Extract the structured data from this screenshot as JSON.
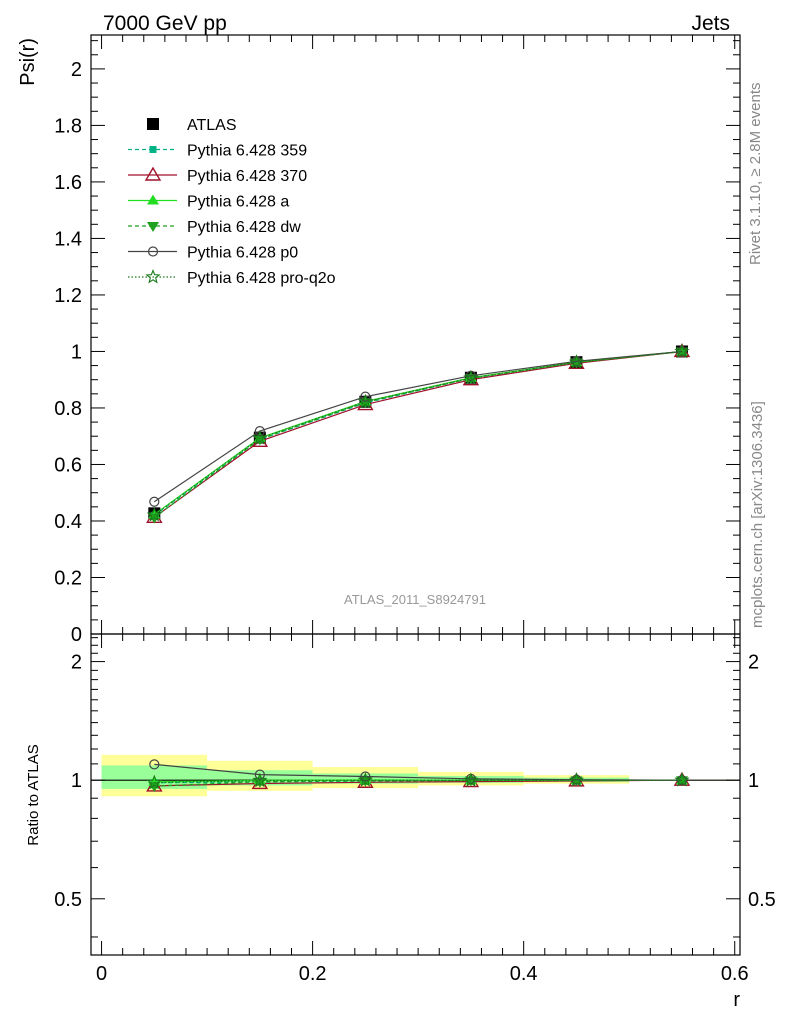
{
  "header": {
    "left": "7000 GeV pp",
    "right": "Jets"
  },
  "side_text": {
    "rivet": "Rivet 3.1.10, ≥ 2.8M events",
    "mcplots": "mcplots.cern.ch [arXiv:1306.3436]"
  },
  "watermark": "ATLAS_2011_S8924791",
  "colors": {
    "atlas": "#000000",
    "p359": "#00b386",
    "p370": "#a0102a",
    "pa": "#22dd22",
    "pdw": "#1fa01f",
    "pp0": "#444444",
    "pq2o": "#1a7a1a",
    "band_outer": "#ffff99",
    "band_inner": "#99ff99"
  },
  "chart_data": [
    {
      "type": "line",
      "ylabel": "Psi(r)",
      "xlabel": "r",
      "xlim": [
        -0.01,
        0.605
      ],
      "ylim": [
        0,
        2.12
      ],
      "yticks": [
        {
          "v": 0,
          "label": "0"
        },
        {
          "v": 0.2,
          "label": "0.2"
        },
        {
          "v": 0.4,
          "label": "0.4"
        },
        {
          "v": 0.6,
          "label": "0.6"
        },
        {
          "v": 0.8,
          "label": "0.8"
        },
        {
          "v": 1.0,
          "label": "1"
        },
        {
          "v": 1.2,
          "label": "1.2"
        },
        {
          "v": 1.4,
          "label": "1.4"
        },
        {
          "v": 1.6,
          "label": "1.6"
        },
        {
          "v": 1.8,
          "label": "1.8"
        },
        {
          "v": 2.0,
          "label": "2"
        }
      ],
      "legend_position": "top-left",
      "x": [
        0.05,
        0.15,
        0.25,
        0.35,
        0.45,
        0.55
      ],
      "series": [
        {
          "name": "ATLAS",
          "key": "atlas",
          "values": [
            0.427,
            0.695,
            0.822,
            0.907,
            0.962,
            1.0
          ]
        },
        {
          "name": "Pythia 6.428 359",
          "key": "p359",
          "values": [
            0.42,
            0.688,
            0.818,
            0.905,
            0.961,
            1.0
          ]
        },
        {
          "name": "Pythia 6.428 370",
          "key": "p370",
          "values": [
            0.413,
            0.682,
            0.812,
            0.9,
            0.958,
            1.0
          ]
        },
        {
          "name": "Pythia 6.428 a",
          "key": "pa",
          "values": [
            0.423,
            0.694,
            0.823,
            0.907,
            0.962,
            1.0
          ]
        },
        {
          "name": "Pythia 6.428 dw",
          "key": "pdw",
          "values": [
            0.412,
            0.689,
            0.82,
            0.905,
            0.961,
            1.0
          ]
        },
        {
          "name": "Pythia 6.428 p0",
          "key": "pp0",
          "values": [
            0.468,
            0.718,
            0.84,
            0.914,
            0.965,
            1.0
          ]
        },
        {
          "name": "Pythia 6.428 pro-q2o",
          "key": "pq2o",
          "values": [
            0.421,
            0.693,
            0.822,
            0.906,
            0.962,
            1.0
          ]
        }
      ]
    },
    {
      "type": "line",
      "ylabel": "Ratio to ATLAS",
      "xlabel": "r",
      "xlim": [
        -0.01,
        0.605
      ],
      "ylim": [
        0.36,
        2.35
      ],
      "ylog": true,
      "yticks": [
        {
          "v": 0.5,
          "label": "0.5"
        },
        {
          "v": 1.0,
          "label": "1"
        },
        {
          "v": 2.0,
          "label": "2"
        }
      ],
      "xticks": [
        {
          "v": 0.0,
          "label": "0"
        },
        {
          "v": 0.2,
          "label": "0.2"
        },
        {
          "v": 0.4,
          "label": "0.4"
        },
        {
          "v": 0.6,
          "label": "0.6"
        }
      ],
      "bands": [
        {
          "x0": 0.0,
          "x1": 0.1,
          "outer": [
            0.91,
            1.16
          ],
          "inner": [
            0.95,
            1.09
          ]
        },
        {
          "x0": 0.1,
          "x1": 0.2,
          "outer": [
            0.94,
            1.12
          ],
          "inner": [
            0.97,
            1.06
          ]
        },
        {
          "x0": 0.2,
          "x1": 0.3,
          "outer": [
            0.955,
            1.08
          ],
          "inner": [
            0.98,
            1.04
          ]
        },
        {
          "x0": 0.3,
          "x1": 0.4,
          "outer": [
            0.97,
            1.05
          ],
          "inner": [
            0.985,
            1.025
          ]
        },
        {
          "x0": 0.4,
          "x1": 0.5,
          "outer": [
            0.98,
            1.03
          ],
          "inner": [
            0.99,
            1.015
          ]
        },
        {
          "x0": 0.5,
          "x1": 0.6,
          "outer": [
            0.997,
            1.003
          ],
          "inner": [
            0.998,
            1.002
          ]
        }
      ],
      "x": [
        0.05,
        0.15,
        0.25,
        0.35,
        0.45,
        0.55
      ],
      "series": [
        {
          "name": "Pythia 6.428 359",
          "key": "p359",
          "values": [
            0.985,
            0.99,
            0.995,
            0.998,
            0.999,
            1.0
          ]
        },
        {
          "name": "Pythia 6.428 370",
          "key": "p370",
          "values": [
            0.967,
            0.981,
            0.988,
            0.992,
            0.996,
            1.0
          ]
        },
        {
          "name": "Pythia 6.428 a",
          "key": "pa",
          "values": [
            0.99,
            0.999,
            1.001,
            1.0,
            1.0,
            1.0
          ]
        },
        {
          "name": "Pythia 6.428 dw",
          "key": "pdw",
          "values": [
            0.966,
            0.991,
            0.997,
            0.998,
            0.999,
            1.0
          ]
        },
        {
          "name": "Pythia 6.428 p0",
          "key": "pp0",
          "values": [
            1.097,
            1.033,
            1.022,
            1.008,
            1.003,
            1.0
          ]
        },
        {
          "name": "Pythia 6.428 pro-q2o",
          "key": "pq2o",
          "values": [
            0.986,
            0.997,
            1.0,
            0.999,
            1.0,
            1.0
          ]
        }
      ]
    }
  ]
}
